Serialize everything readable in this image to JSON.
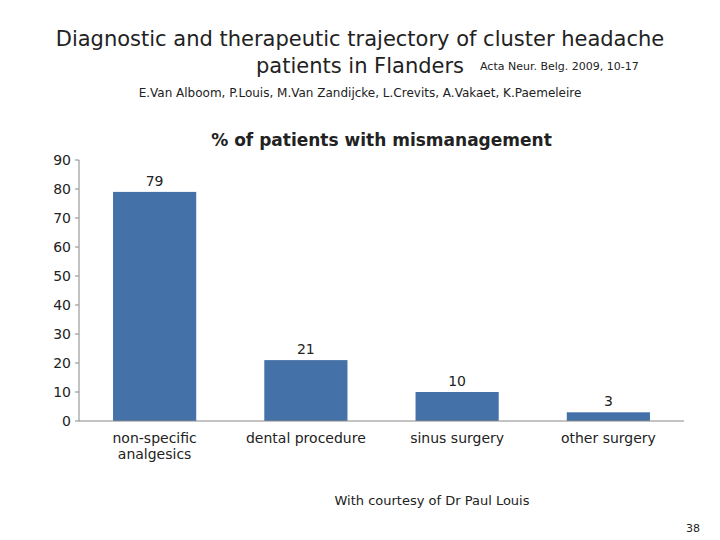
{
  "chart_data": {
    "type": "bar",
    "title": "% of patients with mismanagement",
    "annotations": [
      "Diagnostic and therapeutic trajectory of cluster headache",
      "patients in Flanders",
      "Acta  Neur. Belg. 2009, 10-17",
      "E.Van Alboom, P.Louis, M.Van Zandijcke, L.Crevits, A.Vakaet, K.Paemeleire",
      "With courtesy of Dr Paul Louis",
      "38"
    ],
    "categories": [
      "non-specific\nanalgesics",
      "dental procedure",
      "sinus surgery",
      "other surgery"
    ],
    "values": [
      79,
      21,
      10,
      3
    ],
    "color": "#4472a8",
    "ylim": [
      0,
      90
    ],
    "yticks": [
      0,
      10,
      20,
      30,
      40,
      50,
      60,
      70,
      80,
      90
    ],
    "grid": false,
    "data_labels": true
  }
}
